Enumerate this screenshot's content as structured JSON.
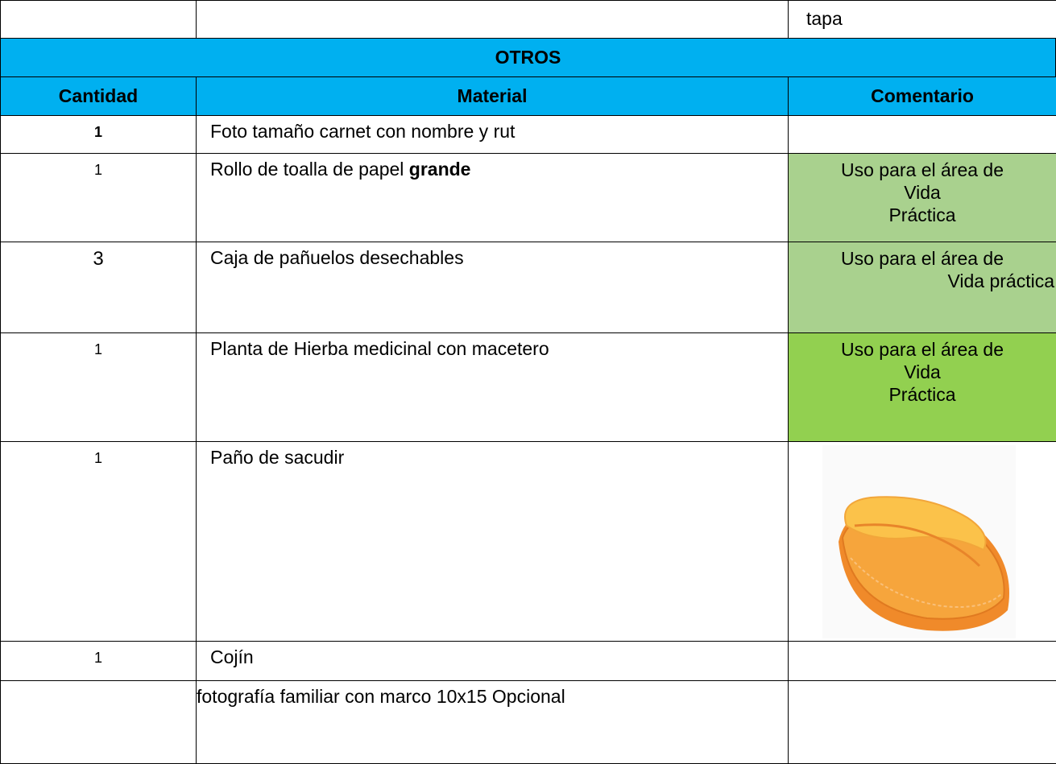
{
  "top_row": {
    "comment": "tapa"
  },
  "section_title": "OTROS",
  "headers": [
    "Cantidad",
    "Material",
    "Comentario"
  ],
  "rows": [
    {
      "quantity": "1",
      "material": "Foto tamaño carnet con nombre y rut"
    },
    {
      "quantity": "1",
      "material": "Rollo de toalla de papel",
      "material_bold": "grande",
      "comment": [
        "Uso para el área de",
        "Vida",
        "Práctica"
      ]
    },
    {
      "quantity": "3",
      "material": "Caja de pañuelos desechables",
      "comment": [
        "Uso para el área de",
        "Vida práctica"
      ]
    },
    {
      "quantity": "1",
      "material": "Planta de Hierba medicinal con macetero",
      "comment": [
        "Uso para el área de",
        "Vida",
        "Práctica"
      ]
    },
    {
      "quantity": "1",
      "material": "Paño de sacudir"
    },
    {
      "quantity": "1",
      "material": "Cojín"
    },
    {
      "material": "fotografía familiar con marco 10x15 Opcional"
    }
  ]
}
